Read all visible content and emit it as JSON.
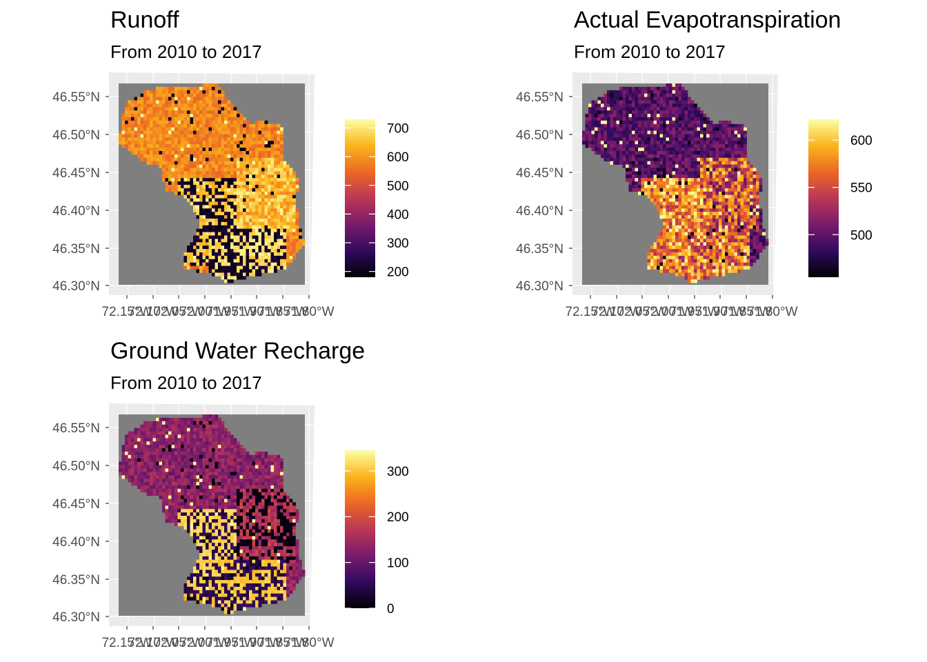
{
  "colors": {
    "panel_background": "#ebebeb",
    "gridline": "#ffffff",
    "na_fill": "#7f7f7f",
    "palette": "inferno",
    "palette_stops": [
      "#000004",
      "#320a5e",
      "#781b6c",
      "#bb3754",
      "#ec6824",
      "#fbb41a",
      "#fcffa4"
    ]
  },
  "chart_data": [
    {
      "type": "heatmap",
      "title": "Runoff",
      "subtitle": "From 2010 to 2017",
      "x_ticks": [
        "72.15°W",
        "72.10°W",
        "72.05°W",
        "72.00°W",
        "71.95°W",
        "71.90°W",
        "71.85°W",
        "71.80°W"
      ],
      "y_ticks": [
        "46.55°N",
        "46.50°N",
        "46.45°N",
        "46.40°N",
        "46.35°N",
        "46.30°N"
      ],
      "xlim": [
        -72.17,
        -71.8
      ],
      "ylim": [
        46.293,
        46.567
      ],
      "legend": {
        "position": "right",
        "min": 180,
        "max": 730,
        "ticks": [
          200,
          300,
          400,
          500,
          600,
          700
        ]
      }
    },
    {
      "type": "heatmap",
      "title": "Actual Evapotranspiration",
      "subtitle": "From 2010 to 2017",
      "x_ticks": [
        "72.15°W",
        "72.10°W",
        "72.05°W",
        "72.00°W",
        "71.95°W",
        "71.90°W",
        "71.85°W",
        "71.80°W"
      ],
      "y_ticks": [
        "46.55°N",
        "46.50°N",
        "46.45°N",
        "46.40°N",
        "46.35°N",
        "46.30°N"
      ],
      "xlim": [
        -72.17,
        -71.8
      ],
      "ylim": [
        46.293,
        46.567
      ],
      "legend": {
        "position": "right",
        "min": 455,
        "max": 622,
        "ticks": [
          500,
          550,
          600
        ]
      }
    },
    {
      "type": "heatmap",
      "title": "Ground Water Recharge",
      "subtitle": "From 2010 to 2017",
      "x_ticks": [
        "72.15°W",
        "72.10°W",
        "72.05°W",
        "72.00°W",
        "71.95°W",
        "71.90°W",
        "71.85°W",
        "71.80°W"
      ],
      "y_ticks": [
        "46.55°N",
        "46.50°N",
        "46.45°N",
        "46.40°N",
        "46.35°N",
        "46.30°N"
      ],
      "xlim": [
        -72.17,
        -71.8
      ],
      "ylim": [
        46.293,
        46.567
      ],
      "legend": {
        "position": "right",
        "min": 0,
        "max": 345,
        "ticks": [
          0,
          100,
          200,
          300
        ]
      }
    }
  ]
}
